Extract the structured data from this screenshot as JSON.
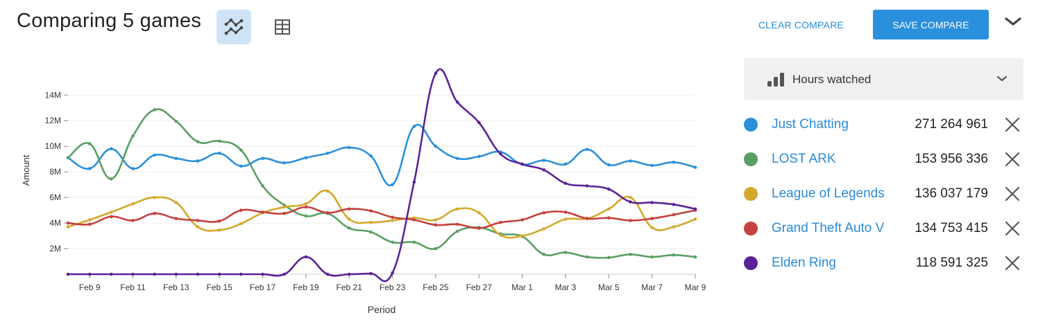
{
  "header": {
    "title": "Comparing 5 games",
    "clear_label": "CLEAR COMPARE",
    "save_label": "SAVE COMPARE"
  },
  "metric": {
    "label": "Hours watched"
  },
  "legend": [
    {
      "name": "Just Chatting",
      "value": "271 264 961",
      "color": "#2b90d9"
    },
    {
      "name": "LOST ARK",
      "value": "153 956 336",
      "color": "#5a9e64"
    },
    {
      "name": "League of Legends",
      "value": "136 037 179",
      "color": "#d4a82c"
    },
    {
      "name": "Grand Theft Auto V",
      "value": "134 753 415",
      "color": "#c4413d"
    },
    {
      "name": "Elden Ring",
      "value": "118 591 325",
      "color": "#5b2297"
    }
  ],
  "chart_data": {
    "type": "line",
    "xlabel": "Period",
    "ylabel": "Amount",
    "ylim": [
      0,
      14000000
    ],
    "yticks": [
      "2M",
      "4M",
      "6M",
      "8M",
      "10M",
      "12M",
      "14M"
    ],
    "ytick_values": [
      2000000,
      4000000,
      6000000,
      8000000,
      10000000,
      12000000,
      14000000
    ],
    "xticks": [
      "Feb 9",
      "Feb 11",
      "Feb 13",
      "Feb 15",
      "Feb 17",
      "Feb 19",
      "Feb 21",
      "Feb 23",
      "Feb 25",
      "Feb 27",
      "Mar 1",
      "Mar 3",
      "Mar 5",
      "Mar 7",
      "Mar 9"
    ],
    "grid": true,
    "x": [
      "Feb 8",
      "Feb 9",
      "Feb 10",
      "Feb 11",
      "Feb 12",
      "Feb 13",
      "Feb 14",
      "Feb 15",
      "Feb 16",
      "Feb 17",
      "Feb 18",
      "Feb 19",
      "Feb 20",
      "Feb 21",
      "Feb 22",
      "Feb 23",
      "Feb 24",
      "Feb 25",
      "Feb 26",
      "Feb 27",
      "Feb 28",
      "Mar 1",
      "Mar 2",
      "Mar 3",
      "Mar 4",
      "Mar 5",
      "Mar 6",
      "Mar 7",
      "Mar 8",
      "Mar 9"
    ],
    "series": [
      {
        "name": "Just Chatting",
        "color": "#2b90d9",
        "values": [
          9100000,
          8250000,
          9800000,
          8250000,
          9300000,
          9050000,
          8850000,
          9450000,
          8450000,
          9050000,
          8700000,
          9100000,
          9450000,
          9900000,
          9250000,
          7000000,
          11550000,
          10000000,
          9050000,
          9200000,
          9550000,
          8600000,
          8900000,
          8600000,
          9750000,
          8550000,
          8850000,
          8500000,
          8750000,
          8350000
        ]
      },
      {
        "name": "LOST ARK",
        "color": "#5a9e64",
        "values": [
          9100000,
          10200000,
          7450000,
          10800000,
          12850000,
          11950000,
          10350000,
          10400000,
          9700000,
          6900000,
          5400000,
          4550000,
          4750000,
          3600000,
          3300000,
          2500000,
          2500000,
          2000000,
          3350000,
          3650000,
          3150000,
          2950000,
          1550000,
          1700000,
          1350000,
          1300000,
          1550000,
          1350000,
          1500000,
          1350000
        ]
      },
      {
        "name": "League of Legends",
        "color": "#d4a82c",
        "values": [
          3700000,
          4250000,
          4850000,
          5500000,
          6000000,
          5600000,
          3700000,
          3450000,
          3950000,
          4800000,
          5250000,
          5500000,
          6500000,
          4300000,
          4050000,
          4200000,
          4400000,
          4250000,
          5100000,
          4800000,
          3050000,
          3000000,
          3550000,
          4300000,
          4350000,
          5100000,
          6000000,
          3650000,
          3700000,
          4300000
        ]
      },
      {
        "name": "Grand Theft Auto V",
        "color": "#c4413d",
        "values": [
          4000000,
          3900000,
          4500000,
          4200000,
          4750000,
          4350000,
          4200000,
          4150000,
          5000000,
          4850000,
          4750000,
          5250000,
          4800000,
          5100000,
          4950000,
          4450000,
          4250000,
          3850000,
          3900000,
          3600000,
          4050000,
          4250000,
          4800000,
          4850000,
          4350000,
          4400000,
          4200000,
          4350000,
          4650000,
          5000000
        ]
      },
      {
        "name": "Elden Ring",
        "color": "#5b2297",
        "values": [
          0,
          0,
          0,
          0,
          0,
          0,
          0,
          0,
          0,
          0,
          0,
          1350000,
          0,
          0,
          50000,
          100000,
          7200000,
          15700000,
          13450000,
          11850000,
          9400000,
          8600000,
          8150000,
          7100000,
          6900000,
          6650000,
          5650000,
          5600000,
          5450000,
          5100000
        ]
      }
    ]
  }
}
